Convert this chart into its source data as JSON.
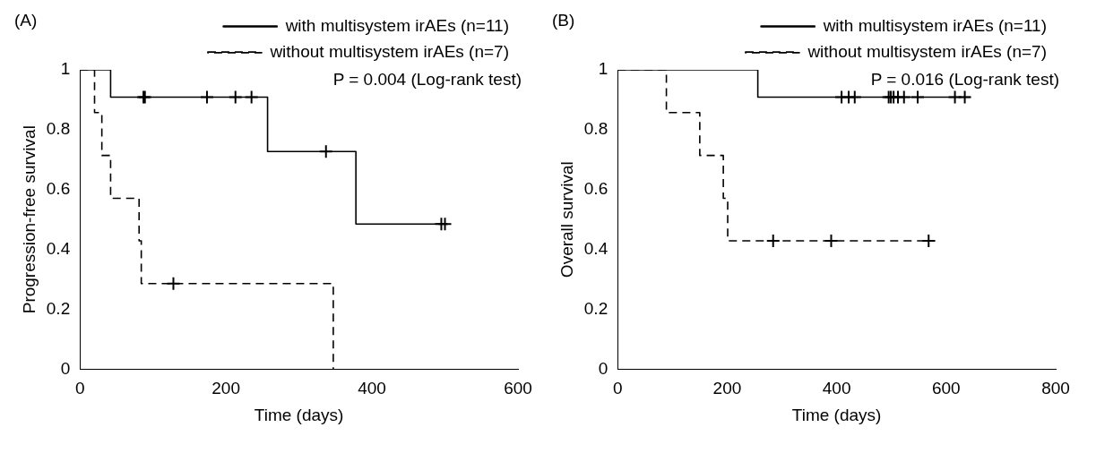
{
  "chart_data": [
    {
      "type": "step",
      "xlabel": "Time (days)",
      "ylabel": "Progression-free survival",
      "xlim": [
        0,
        600
      ],
      "xticks": [
        0,
        200,
        400,
        600
      ],
      "ylim": [
        0,
        1
      ],
      "yticks": [
        0,
        0.2,
        0.4,
        0.6,
        0.8,
        1
      ],
      "grid": false,
      "legend": "top",
      "annotations": [
        "(A)",
        "P = 0.004 (Log-rank test)"
      ],
      "series": [
        {
          "name": "with multisystem irAEs (n=11)",
          "color": "#000000",
          "line_style": "solid",
          "x": [
            0,
            42,
            257,
            378,
            500
          ],
          "values": [
            1,
            0.909,
            0.727,
            0.485,
            0.485
          ]
        },
        {
          "name": "without multisystem irAEs (n=7)",
          "color": "#000000",
          "line_style": "dashed",
          "x": [
            0,
            20,
            30,
            42,
            81,
            84,
            347
          ],
          "values": [
            1,
            0.857,
            0.714,
            0.571,
            0.429,
            0.286,
            0
          ]
        },
        {
          "type": "scatter",
          "marker": "cross",
          "color": "#000000",
          "x": [
            87,
            89,
            174,
            213,
            235,
            337,
            495,
            500
          ],
          "values": [
            0.909,
            0.909,
            0.909,
            0.909,
            0.909,
            0.727,
            0.485,
            0.485
          ]
        },
        {
          "type": "scatter",
          "marker": "cross",
          "color": "#000000",
          "x": [
            128
          ],
          "values": [
            0.286
          ]
        }
      ]
    },
    {
      "type": "step",
      "xlabel": "Time (days)",
      "ylabel": "Overall survival",
      "xlim": [
        0,
        800
      ],
      "xticks": [
        0,
        200,
        400,
        600,
        800
      ],
      "ylim": [
        0,
        1
      ],
      "yticks": [
        0,
        0.2,
        0.4,
        0.6,
        0.8,
        1
      ],
      "grid": false,
      "legend": "top",
      "annotations": [
        "(B)",
        "P = 0.016 (Log-rank test)"
      ],
      "series": [
        {
          "name": "with multisystem irAEs (n=11)",
          "color": "#000000",
          "line_style": "solid",
          "x": [
            0,
            256,
            644
          ],
          "values": [
            1,
            0.909,
            0.909
          ]
        },
        {
          "name": "without multisystem irAEs (n=7)",
          "color": "#000000",
          "line_style": "dashed",
          "x": [
            0,
            89,
            150,
            193,
            201,
            580
          ],
          "values": [
            1,
            0.857,
            0.714,
            0.571,
            0.429,
            0.429
          ]
        },
        {
          "type": "scatter",
          "marker": "cross",
          "color": "#000000",
          "x": [
            409,
            422,
            433,
            495,
            499,
            504,
            512,
            523,
            548,
            616,
            634
          ],
          "values": [
            0.909,
            0.909,
            0.909,
            0.909,
            0.909,
            0.909,
            0.909,
            0.909,
            0.909,
            0.909,
            0.909
          ]
        },
        {
          "type": "scatter",
          "marker": "cross",
          "color": "#000000",
          "x": [
            284,
            390,
            568
          ],
          "values": [
            0.429,
            0.429,
            0.429
          ]
        }
      ]
    }
  ]
}
